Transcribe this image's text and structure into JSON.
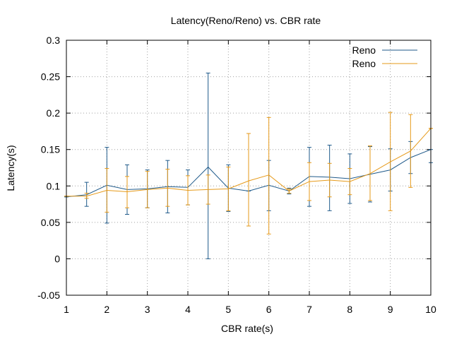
{
  "chart_data": {
    "type": "line",
    "title": "Latency(Reno/Reno) vs. CBR rate",
    "xlabel": "CBR rate(s)",
    "ylabel": "Latency(s)",
    "xlim": [
      1,
      10
    ],
    "ylim": [
      -0.05,
      0.3
    ],
    "xticks": [
      1,
      2,
      3,
      4,
      5,
      6,
      7,
      8,
      9,
      10
    ],
    "yticks": [
      -0.05,
      0,
      0.05,
      0.1,
      0.15,
      0.2,
      0.25,
      0.3
    ],
    "grid": true,
    "legend_position": "top-right",
    "x": [
      1,
      1.5,
      2,
      2.5,
      3,
      3.5,
      4,
      4.5,
      5,
      5.5,
      6,
      6.5,
      7,
      7.5,
      8,
      8.5,
      9,
      9.5,
      10
    ],
    "series": [
      {
        "name": "Reno",
        "color": "#1f5a8a",
        "values": [
          0.085,
          0.088,
          0.101,
          0.095,
          0.096,
          0.099,
          0.098,
          0.126,
          0.097,
          0.093,
          0.101,
          0.093,
          0.113,
          0.112,
          0.11,
          0.116,
          0.122,
          0.139,
          0.15
        ],
        "err_low": [
          0.085,
          0.072,
          0.049,
          0.061,
          0.07,
          0.063,
          0.074,
          0.0,
          0.065,
          0.093,
          0.066,
          0.089,
          0.072,
          0.066,
          0.076,
          0.078,
          0.093,
          0.117,
          0.132
        ],
        "err_high": [
          0.085,
          0.105,
          0.153,
          0.129,
          0.122,
          0.135,
          0.122,
          0.255,
          0.129,
          0.093,
          0.135,
          0.097,
          0.153,
          0.156,
          0.144,
          0.154,
          0.151,
          0.161,
          0.15
        ]
      },
      {
        "name": "Reno",
        "color": "#e69a1a",
        "values": [
          0.086,
          0.086,
          0.094,
          0.092,
          0.095,
          0.097,
          0.094,
          0.095,
          0.096,
          0.107,
          0.115,
          0.093,
          0.106,
          0.108,
          0.106,
          0.117,
          0.133,
          0.148,
          0.179
        ],
        "err_low": [
          0.086,
          0.083,
          0.064,
          0.07,
          0.07,
          0.072,
          0.074,
          0.075,
          0.066,
          0.045,
          0.034,
          0.09,
          0.08,
          0.085,
          0.088,
          0.08,
          0.066,
          0.098,
          0.179
        ],
        "err_high": [
          0.086,
          0.09,
          0.124,
          0.113,
          0.12,
          0.123,
          0.114,
          0.115,
          0.126,
          0.172,
          0.194,
          0.096,
          0.132,
          0.131,
          0.124,
          0.155,
          0.201,
          0.198,
          0.179
        ]
      }
    ]
  }
}
